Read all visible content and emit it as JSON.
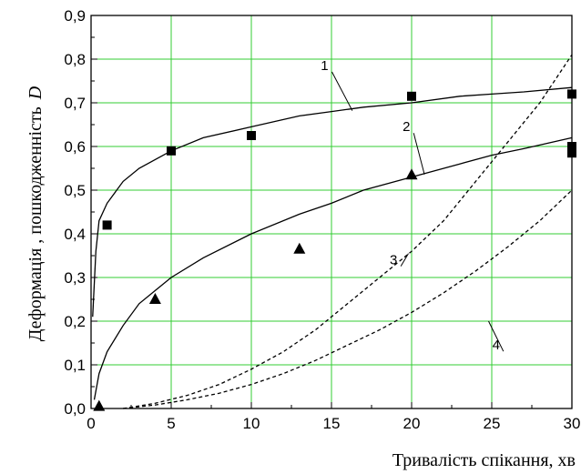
{
  "chart_data": {
    "type": "scatter",
    "xlabel": "Тривалість спікання, хв",
    "ylabel": "Деформація , пошкодженність",
    "ylabel_symbol": "D",
    "xlim": [
      0,
      30
    ],
    "ylim": [
      0,
      0.9
    ],
    "grid": true,
    "grid_color": "#33cc33",
    "x_ticks": [
      "0",
      "5",
      "10",
      "15",
      "20",
      "25",
      "30"
    ],
    "y_ticks": [
      "0,0",
      "0,1",
      "0,2",
      "0,3",
      "0,4",
      "0,5",
      "0,6",
      "0,7",
      "0,8",
      "0,9"
    ],
    "series": [
      {
        "name": "1",
        "style": "solid",
        "x": [
          0.1,
          0.3,
          0.5,
          1,
          2,
          3,
          5,
          7,
          10,
          13,
          15,
          17,
          20,
          23,
          25,
          27,
          30
        ],
        "y": [
          0.21,
          0.36,
          0.43,
          0.47,
          0.52,
          0.55,
          0.59,
          0.62,
          0.645,
          0.67,
          0.68,
          0.69,
          0.7,
          0.715,
          0.72,
          0.725,
          0.735
        ]
      },
      {
        "name": "2",
        "style": "solid",
        "x": [
          0.2,
          0.5,
          1,
          2,
          3,
          4,
          5,
          7,
          10,
          13,
          15,
          17,
          20,
          23,
          25,
          27,
          30
        ],
        "y": [
          0.02,
          0.08,
          0.13,
          0.19,
          0.24,
          0.27,
          0.3,
          0.345,
          0.4,
          0.445,
          0.47,
          0.5,
          0.53,
          0.56,
          0.58,
          0.595,
          0.62
        ]
      },
      {
        "name": "3",
        "style": "dashed",
        "x": [
          2,
          4,
          6,
          8,
          10,
          12,
          14,
          16,
          18,
          20,
          22,
          24,
          26,
          28,
          30
        ],
        "y": [
          0.0,
          0.012,
          0.03,
          0.055,
          0.09,
          0.13,
          0.18,
          0.24,
          0.3,
          0.36,
          0.43,
          0.52,
          0.61,
          0.7,
          0.81
        ]
      },
      {
        "name": "4",
        "style": "dashed",
        "x": [
          2,
          4,
          6,
          8,
          10,
          12,
          14,
          16,
          18,
          20,
          22,
          24,
          26,
          28,
          30
        ],
        "y": [
          0.0,
          0.008,
          0.02,
          0.035,
          0.055,
          0.08,
          0.11,
          0.145,
          0.18,
          0.22,
          0.265,
          0.315,
          0.37,
          0.43,
          0.5
        ]
      },
      {
        "name": "squares",
        "marker": "square",
        "x": [
          1,
          5,
          10,
          20,
          30,
          30,
          30
        ],
        "y": [
          0.42,
          0.59,
          0.625,
          0.715,
          0.72,
          0.6,
          0.585
        ]
      },
      {
        "name": "triangles",
        "marker": "triangle",
        "x": [
          0.5,
          4,
          13,
          20
        ],
        "y": [
          0.005,
          0.25,
          0.365,
          0.535
        ]
      }
    ],
    "curve_labels": [
      {
        "text": "1",
        "x": 14.8,
        "y": 0.775,
        "x_end": 16.3,
        "y_end": 0.682
      },
      {
        "text": "2",
        "x": 19.9,
        "y": 0.635,
        "x_end": 20.8,
        "y_end": 0.536
      },
      {
        "text": "3",
        "x": 19.1,
        "y": 0.33,
        "x_end": 19.8,
        "y_end": 0.355
      },
      {
        "text": "4",
        "x": 25.5,
        "y": 0.135,
        "x_end": 24.8,
        "y_end": 0.2
      }
    ]
  }
}
